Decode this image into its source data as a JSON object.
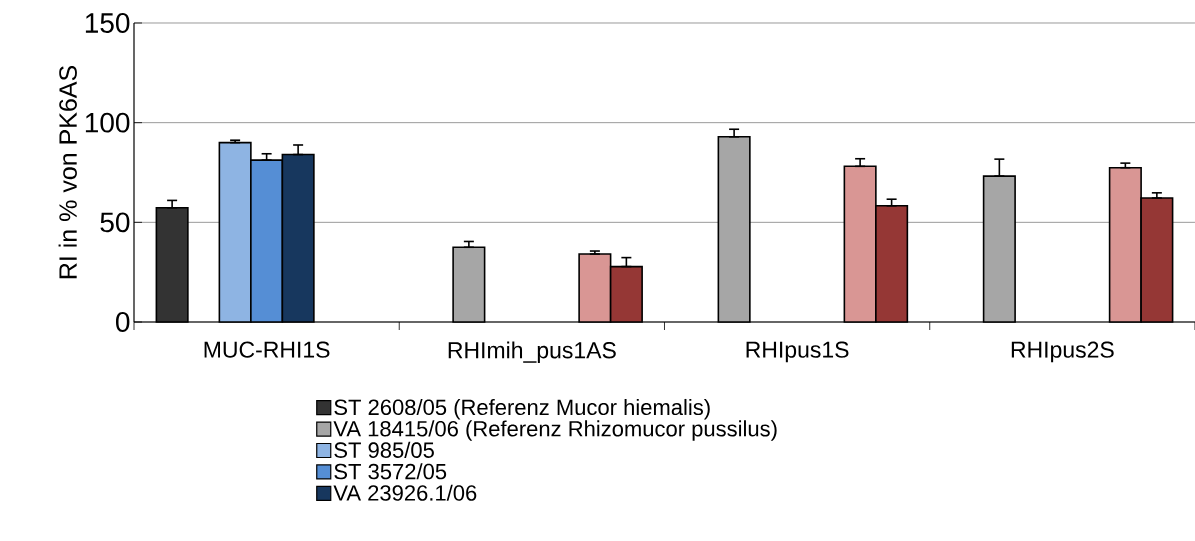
{
  "chart_data": {
    "type": "bar",
    "ylabel": "RI in % von PK6AS",
    "categories": [
      "MUC-RHI1S",
      "RHImih_pus1AS",
      "RHIpus1S",
      "RHIpus2S"
    ],
    "series": [
      {
        "name": "ST 2608/05 (Referenz Mucor hiemalis)",
        "color": "#333333",
        "values": [
          57.3,
          null,
          null,
          null
        ],
        "errors": [
          [
            57.3,
            61
          ],
          null,
          null,
          null
        ]
      },
      {
        "name": "VA 18415/06 (Referenz Rhizomucor pussilus)",
        "color": "#a6a6a6",
        "values": [
          null,
          37.5,
          92.9,
          73.2
        ],
        "errors": [
          null,
          [
            37.5,
            40.4
          ],
          [
            92.9,
            96.7
          ],
          [
            73.2,
            81.7
          ]
        ]
      },
      {
        "name": "ST 985/05",
        "color": "#8eb4e3",
        "values": [
          90,
          null,
          null,
          null
        ],
        "errors": [
          [
            90,
            91.2
          ],
          null,
          null,
          null
        ]
      },
      {
        "name": "ST 3572/05",
        "color": "#558ed5",
        "values": [
          81.2,
          null,
          null,
          null
        ],
        "errors": [
          [
            81.2,
            84.4
          ],
          null,
          null,
          null
        ]
      },
      {
        "name": "VA 23926.1/06",
        "color": "#17375e",
        "values": [
          84,
          null,
          null,
          null
        ],
        "errors": [
          [
            84,
            88.8
          ],
          null,
          null,
          null
        ]
      },
      {
        "color": "#d99694",
        "values": [
          null,
          34.1,
          78.1,
          77.4
        ],
        "errors": [
          null,
          [
            34.1,
            35.6
          ],
          [
            78.1,
            81.9
          ],
          [
            77.4,
            79.7
          ]
        ]
      },
      {
        "color": "#953735",
        "values": [
          null,
          27.8,
          58.3,
          62.2
        ],
        "errors": [
          null,
          [
            27.8,
            32.3
          ],
          [
            58.3,
            61.6
          ],
          [
            62.2,
            64.8
          ]
        ]
      }
    ],
    "ylim": [
      0,
      150
    ],
    "yticks": [
      0,
      50,
      100,
      150
    ],
    "grid": "y",
    "legend": "bottom"
  }
}
